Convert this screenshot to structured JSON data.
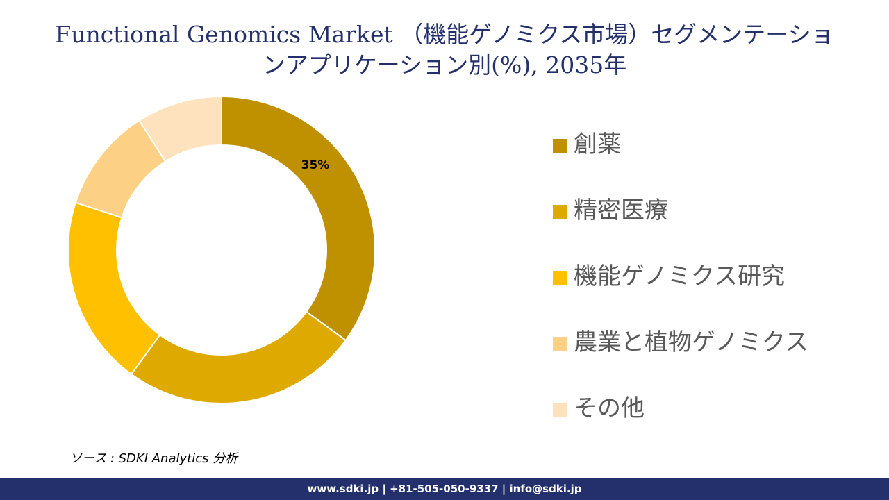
{
  "header": {
    "title_line1": "Functional Genomics Market （機能ゲノミクス市場）セグメンテーショ",
    "title_line2": "ンアプリケーション別(%), 2035年"
  },
  "chart_data": {
    "type": "pie",
    "style": "donut",
    "categories": [
      "創薬",
      "精密医療",
      "機能ゲノミクス研究",
      "農業と植物ゲノミクス",
      "その他"
    ],
    "values": [
      35,
      25,
      20,
      11,
      9
    ],
    "colors": [
      "#bf9000",
      "#dea900",
      "#ffc000",
      "#fdd185",
      "#fde2bd"
    ],
    "data_labels": [
      "35%",
      "",
      "",
      "",
      ""
    ],
    "legend_position": "right"
  },
  "source": "ソース : SDKI Analytics 分析",
  "footer": "www.sdki.jp | +81-505-050-9337 | info@sdki.jp"
}
